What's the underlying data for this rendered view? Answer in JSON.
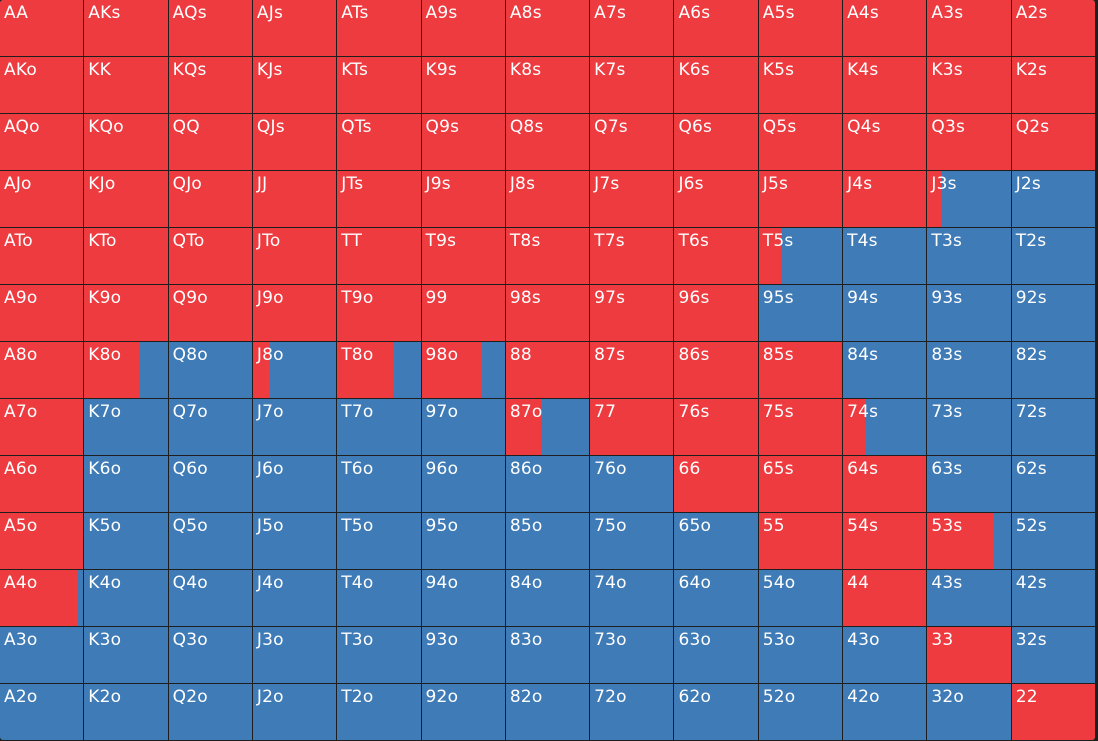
{
  "colors": {
    "raise": "#ee3b40",
    "fold": "#3f7bb6"
  },
  "hands": [
    {
      "label": "AA",
      "raise": 1
    },
    {
      "label": "AKs",
      "raise": 1
    },
    {
      "label": "AQs",
      "raise": 1
    },
    {
      "label": "AJs",
      "raise": 1
    },
    {
      "label": "ATs",
      "raise": 1
    },
    {
      "label": "A9s",
      "raise": 1
    },
    {
      "label": "A8s",
      "raise": 1
    },
    {
      "label": "A7s",
      "raise": 1
    },
    {
      "label": "A6s",
      "raise": 1
    },
    {
      "label": "A5s",
      "raise": 1
    },
    {
      "label": "A4s",
      "raise": 1
    },
    {
      "label": "A3s",
      "raise": 1
    },
    {
      "label": "A2s",
      "raise": 1
    },
    {
      "label": "AKo",
      "raise": 1
    },
    {
      "label": "KK",
      "raise": 1
    },
    {
      "label": "KQs",
      "raise": 1
    },
    {
      "label": "KJs",
      "raise": 1
    },
    {
      "label": "KTs",
      "raise": 1
    },
    {
      "label": "K9s",
      "raise": 1
    },
    {
      "label": "K8s",
      "raise": 1
    },
    {
      "label": "K7s",
      "raise": 1
    },
    {
      "label": "K6s",
      "raise": 1
    },
    {
      "label": "K5s",
      "raise": 1
    },
    {
      "label": "K4s",
      "raise": 1
    },
    {
      "label": "K3s",
      "raise": 1
    },
    {
      "label": "K2s",
      "raise": 1
    },
    {
      "label": "AQo",
      "raise": 1
    },
    {
      "label": "KQo",
      "raise": 1
    },
    {
      "label": "QQ",
      "raise": 1
    },
    {
      "label": "QJs",
      "raise": 1
    },
    {
      "label": "QTs",
      "raise": 1
    },
    {
      "label": "Q9s",
      "raise": 1
    },
    {
      "label": "Q8s",
      "raise": 1
    },
    {
      "label": "Q7s",
      "raise": 1
    },
    {
      "label": "Q6s",
      "raise": 1
    },
    {
      "label": "Q5s",
      "raise": 1
    },
    {
      "label": "Q4s",
      "raise": 1
    },
    {
      "label": "Q3s",
      "raise": 1
    },
    {
      "label": "Q2s",
      "raise": 1
    },
    {
      "label": "AJo",
      "raise": 1
    },
    {
      "label": "KJo",
      "raise": 1
    },
    {
      "label": "QJo",
      "raise": 1
    },
    {
      "label": "JJ",
      "raise": 1
    },
    {
      "label": "JTs",
      "raise": 1
    },
    {
      "label": "J9s",
      "raise": 1
    },
    {
      "label": "J8s",
      "raise": 1
    },
    {
      "label": "J7s",
      "raise": 1
    },
    {
      "label": "J6s",
      "raise": 1
    },
    {
      "label": "J5s",
      "raise": 1
    },
    {
      "label": "J4s",
      "raise": 1
    },
    {
      "label": "J3s",
      "raise": 0.17
    },
    {
      "label": "J2s",
      "raise": 0
    },
    {
      "label": "ATo",
      "raise": 1
    },
    {
      "label": "KTo",
      "raise": 1
    },
    {
      "label": "QTo",
      "raise": 1
    },
    {
      "label": "JTo",
      "raise": 1
    },
    {
      "label": "TT",
      "raise": 1
    },
    {
      "label": "T9s",
      "raise": 1
    },
    {
      "label": "T8s",
      "raise": 1
    },
    {
      "label": "T7s",
      "raise": 1
    },
    {
      "label": "T6s",
      "raise": 1
    },
    {
      "label": "T5s",
      "raise": 0.27
    },
    {
      "label": "T4s",
      "raise": 0
    },
    {
      "label": "T3s",
      "raise": 0
    },
    {
      "label": "T2s",
      "raise": 0
    },
    {
      "label": "A9o",
      "raise": 1
    },
    {
      "label": "K9o",
      "raise": 1
    },
    {
      "label": "Q9o",
      "raise": 1
    },
    {
      "label": "J9o",
      "raise": 1
    },
    {
      "label": "T9o",
      "raise": 1
    },
    {
      "label": "99",
      "raise": 1
    },
    {
      "label": "98s",
      "raise": 1
    },
    {
      "label": "97s",
      "raise": 1
    },
    {
      "label": "96s",
      "raise": 1
    },
    {
      "label": "95s",
      "raise": 0
    },
    {
      "label": "94s",
      "raise": 0
    },
    {
      "label": "93s",
      "raise": 0
    },
    {
      "label": "92s",
      "raise": 0
    },
    {
      "label": "A8o",
      "raise": 1
    },
    {
      "label": "K8o",
      "raise": 0.67
    },
    {
      "label": "Q8o",
      "raise": 0
    },
    {
      "label": "J8o",
      "raise": 0.2
    },
    {
      "label": "T8o",
      "raise": 0.67
    },
    {
      "label": "98o",
      "raise": 0.71
    },
    {
      "label": "88",
      "raise": 1
    },
    {
      "label": "87s",
      "raise": 1
    },
    {
      "label": "86s",
      "raise": 1
    },
    {
      "label": "85s",
      "raise": 1
    },
    {
      "label": "84s",
      "raise": 0
    },
    {
      "label": "83s",
      "raise": 0
    },
    {
      "label": "82s",
      "raise": 0
    },
    {
      "label": "A7o",
      "raise": 1
    },
    {
      "label": "K7o",
      "raise": 0
    },
    {
      "label": "Q7o",
      "raise": 0
    },
    {
      "label": "J7o",
      "raise": 0
    },
    {
      "label": "T7o",
      "raise": 0
    },
    {
      "label": "97o",
      "raise": 0
    },
    {
      "label": "87o",
      "raise": 0.42
    },
    {
      "label": "77",
      "raise": 1
    },
    {
      "label": "76s",
      "raise": 1
    },
    {
      "label": "75s",
      "raise": 1
    },
    {
      "label": "74s",
      "raise": 0.26
    },
    {
      "label": "73s",
      "raise": 0
    },
    {
      "label": "72s",
      "raise": 0
    },
    {
      "label": "A6o",
      "raise": 1
    },
    {
      "label": "K6o",
      "raise": 0
    },
    {
      "label": "Q6o",
      "raise": 0
    },
    {
      "label": "J6o",
      "raise": 0
    },
    {
      "label": "T6o",
      "raise": 0
    },
    {
      "label": "96o",
      "raise": 0
    },
    {
      "label": "86o",
      "raise": 0
    },
    {
      "label": "76o",
      "raise": 0
    },
    {
      "label": "66",
      "raise": 1
    },
    {
      "label": "65s",
      "raise": 1
    },
    {
      "label": "64s",
      "raise": 1
    },
    {
      "label": "63s",
      "raise": 0
    },
    {
      "label": "62s",
      "raise": 0
    },
    {
      "label": "A5o",
      "raise": 1
    },
    {
      "label": "K5o",
      "raise": 0
    },
    {
      "label": "Q5o",
      "raise": 0
    },
    {
      "label": "J5o",
      "raise": 0
    },
    {
      "label": "T5o",
      "raise": 0
    },
    {
      "label": "95o",
      "raise": 0
    },
    {
      "label": "85o",
      "raise": 0
    },
    {
      "label": "75o",
      "raise": 0
    },
    {
      "label": "65o",
      "raise": 0
    },
    {
      "label": "55",
      "raise": 1
    },
    {
      "label": "54s",
      "raise": 1
    },
    {
      "label": "53s",
      "raise": 0.8
    },
    {
      "label": "52s",
      "raise": 0
    },
    {
      "label": "A4o",
      "raise": 0.94
    },
    {
      "label": "K4o",
      "raise": 0
    },
    {
      "label": "Q4o",
      "raise": 0
    },
    {
      "label": "J4o",
      "raise": 0
    },
    {
      "label": "T4o",
      "raise": 0
    },
    {
      "label": "94o",
      "raise": 0
    },
    {
      "label": "84o",
      "raise": 0
    },
    {
      "label": "74o",
      "raise": 0
    },
    {
      "label": "64o",
      "raise": 0
    },
    {
      "label": "54o",
      "raise": 0
    },
    {
      "label": "44",
      "raise": 1
    },
    {
      "label": "43s",
      "raise": 0
    },
    {
      "label": "42s",
      "raise": 0
    },
    {
      "label": "A3o",
      "raise": 0
    },
    {
      "label": "K3o",
      "raise": 0
    },
    {
      "label": "Q3o",
      "raise": 0
    },
    {
      "label": "J3o",
      "raise": 0
    },
    {
      "label": "T3o",
      "raise": 0
    },
    {
      "label": "93o",
      "raise": 0
    },
    {
      "label": "83o",
      "raise": 0
    },
    {
      "label": "73o",
      "raise": 0
    },
    {
      "label": "63o",
      "raise": 0
    },
    {
      "label": "53o",
      "raise": 0
    },
    {
      "label": "43o",
      "raise": 0
    },
    {
      "label": "33",
      "raise": 1
    },
    {
      "label": "32s",
      "raise": 0
    },
    {
      "label": "A2o",
      "raise": 0
    },
    {
      "label": "K2o",
      "raise": 0
    },
    {
      "label": "Q2o",
      "raise": 0
    },
    {
      "label": "J2o",
      "raise": 0
    },
    {
      "label": "T2o",
      "raise": 0
    },
    {
      "label": "92o",
      "raise": 0
    },
    {
      "label": "82o",
      "raise": 0
    },
    {
      "label": "72o",
      "raise": 0
    },
    {
      "label": "62o",
      "raise": 0
    },
    {
      "label": "52o",
      "raise": 0
    },
    {
      "label": "42o",
      "raise": 0
    },
    {
      "label": "32o",
      "raise": 0
    },
    {
      "label": "22",
      "raise": 1
    }
  ]
}
